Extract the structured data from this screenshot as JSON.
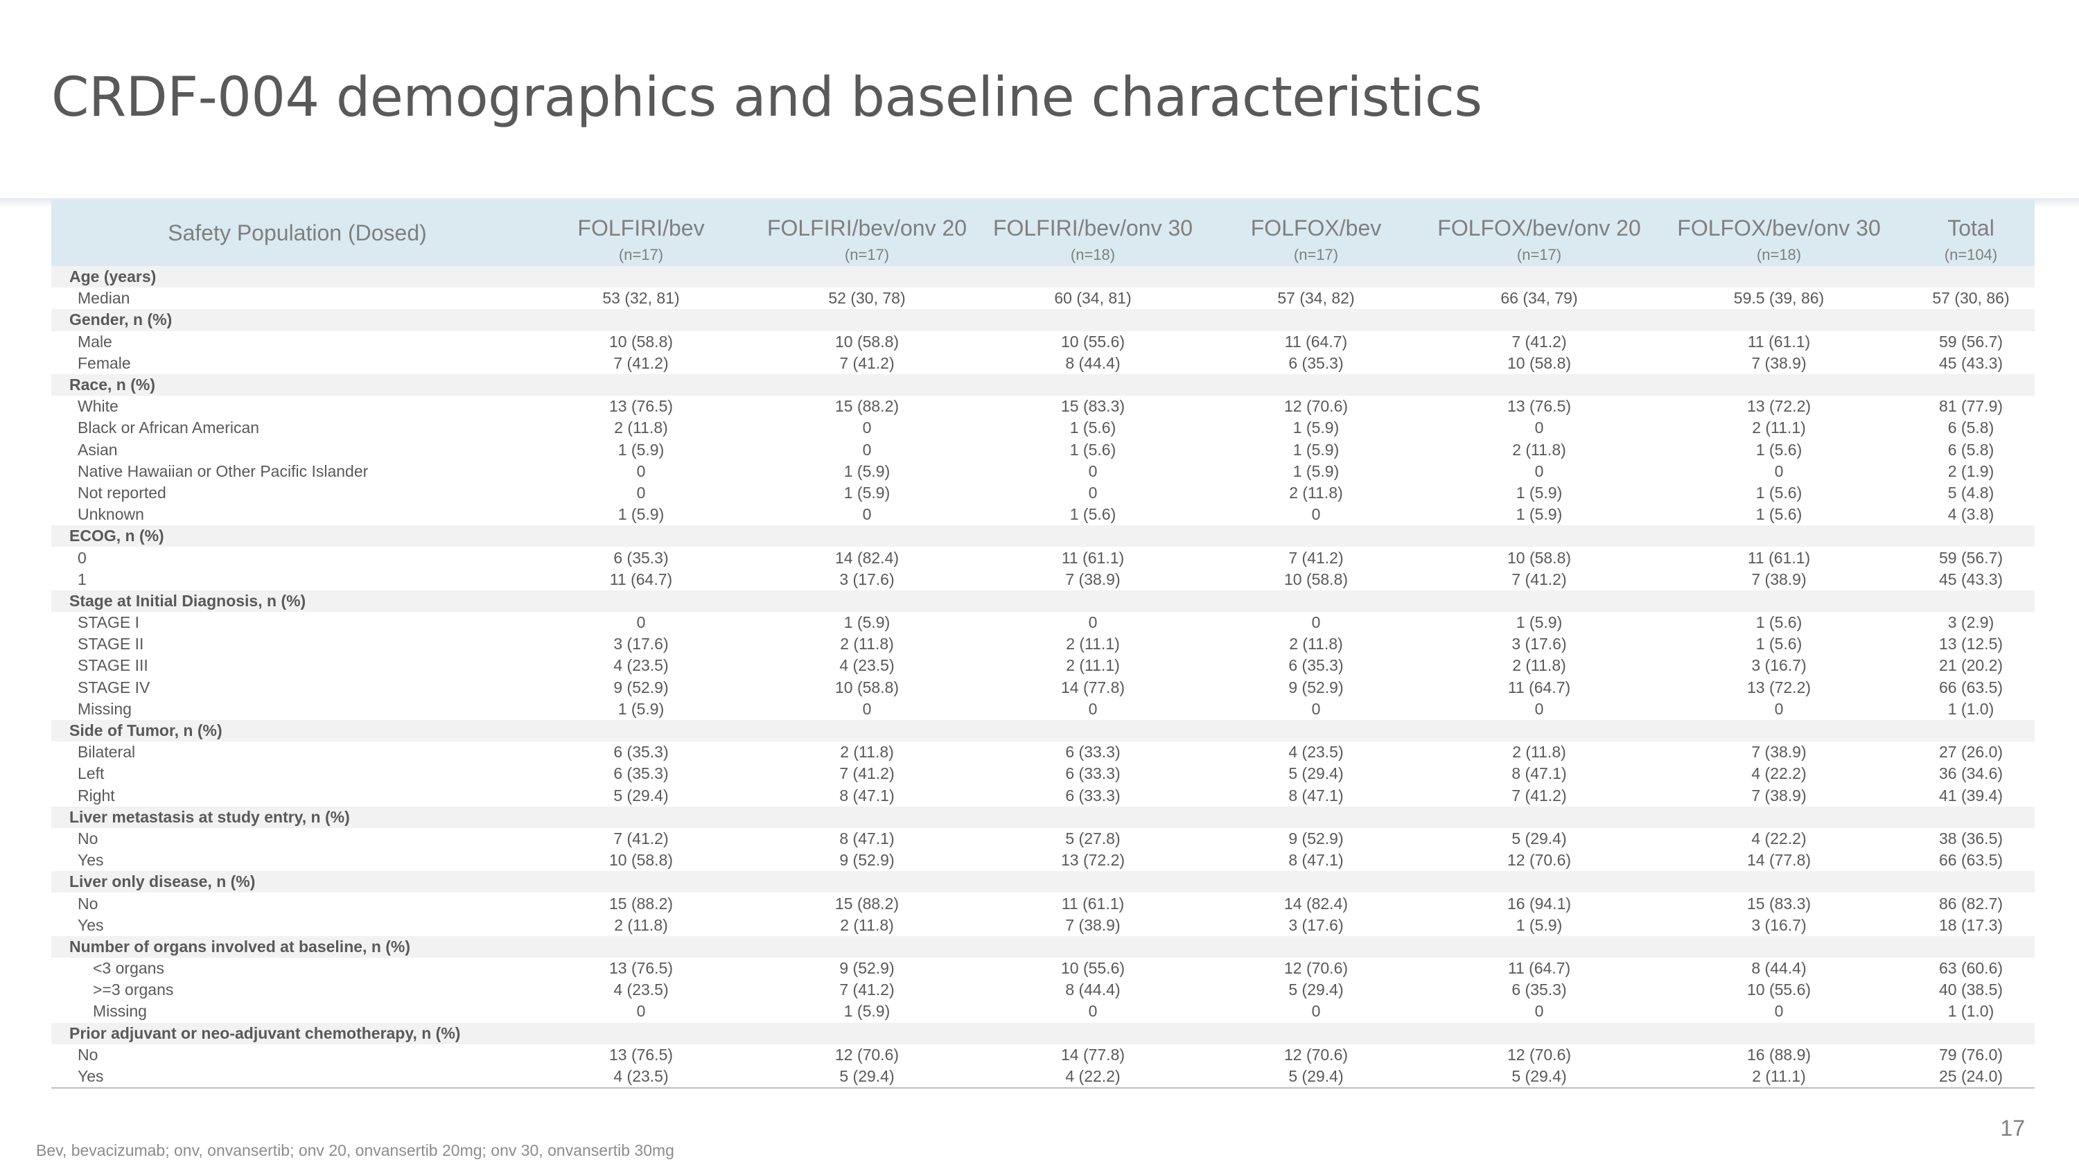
{
  "slide": {
    "title": "CRDF-004 demographics and baseline characteristics",
    "footnote": "Bev, bevacizumab; onv, onvansertib; onv 20, onvansertib 20mg; onv 30, onvansertib 30mg",
    "page_number": "17"
  },
  "table": {
    "group_label": "Safety Population (Dosed)",
    "columns": [
      {
        "name": "FOLFIRI/bev",
        "n": "(n=17)"
      },
      {
        "name": "FOLFIRI/bev/onv 20",
        "n": "(n=17)"
      },
      {
        "name": "FOLFIRI/bev/onv 30",
        "n": "(n=18)"
      },
      {
        "name": "FOLFOX/bev",
        "n": "(n=17)"
      },
      {
        "name": "FOLFOX/bev/onv 20",
        "n": "(n=17)"
      },
      {
        "name": "FOLFOX/bev/onv 30",
        "n": "(n=18)"
      },
      {
        "name": "Total",
        "n": "(n=104)"
      }
    ],
    "sections": [
      {
        "label": "Age (years)",
        "rows": [
          {
            "label": "Median",
            "values": [
              "53 (32, 81)",
              "52 (30, 78)",
              "60 (34, 81)",
              "57 (34, 82)",
              "66 (34, 79)",
              "59.5 (39, 86)",
              "57 (30, 86)"
            ]
          }
        ]
      },
      {
        "label": "Gender, n (%)",
        "rows": [
          {
            "label": "Male",
            "values": [
              "10 (58.8)",
              "10 (58.8)",
              "10 (55.6)",
              "11 (64.7)",
              "7 (41.2)",
              "11 (61.1)",
              "59 (56.7)"
            ]
          },
          {
            "label": "Female",
            "values": [
              "7 (41.2)",
              "7 (41.2)",
              "8 (44.4)",
              "6 (35.3)",
              "10 (58.8)",
              "7 (38.9)",
              "45 (43.3)"
            ]
          }
        ]
      },
      {
        "label": "Race, n (%)",
        "rows": [
          {
            "label": "White",
            "values": [
              "13 (76.5)",
              "15 (88.2)",
              "15 (83.3)",
              "12 (70.6)",
              "13 (76.5)",
              "13 (72.2)",
              "81 (77.9)"
            ]
          },
          {
            "label": "Black or African American",
            "values": [
              "2 (11.8)",
              "0",
              "1 (5.6)",
              "1 (5.9)",
              "0",
              "2 (11.1)",
              "6 (5.8)"
            ]
          },
          {
            "label": "Asian",
            "values": [
              "1 (5.9)",
              "0",
              "1 (5.6)",
              "1 (5.9)",
              "2 (11.8)",
              "1 (5.6)",
              "6 (5.8)"
            ]
          },
          {
            "label": "Native Hawaiian or Other Pacific Islander",
            "values": [
              "0",
              "1 (5.9)",
              "0",
              "1 (5.9)",
              "0",
              "0",
              "2 (1.9)"
            ]
          },
          {
            "label": "Not reported",
            "values": [
              "0",
              "1 (5.9)",
              "0",
              "2 (11.8)",
              "1 (5.9)",
              "1 (5.6)",
              "5 (4.8)"
            ]
          },
          {
            "label": "Unknown",
            "values": [
              "1 (5.9)",
              "0",
              "1 (5.6)",
              "0",
              "1 (5.9)",
              "1 (5.6)",
              "4 (3.8)"
            ]
          }
        ]
      },
      {
        "label": "ECOG, n (%)",
        "rows": [
          {
            "label": "0",
            "values": [
              "6 (35.3)",
              "14 (82.4)",
              "11 (61.1)",
              "7 (41.2)",
              "10 (58.8)",
              "11 (61.1)",
              "59 (56.7)"
            ]
          },
          {
            "label": "1",
            "values": [
              "11 (64.7)",
              "3 (17.6)",
              "7 (38.9)",
              "10 (58.8)",
              "7 (41.2)",
              "7 (38.9)",
              "45 (43.3)"
            ]
          }
        ]
      },
      {
        "label": "Stage at Initial Diagnosis, n (%)",
        "rows": [
          {
            "label": "STAGE I",
            "values": [
              "0",
              "1 (5.9)",
              "0",
              "0",
              "1 (5.9)",
              "1 (5.6)",
              "3 (2.9)"
            ]
          },
          {
            "label": "STAGE II",
            "values": [
              "3 (17.6)",
              "2 (11.8)",
              "2 (11.1)",
              "2 (11.8)",
              "3 (17.6)",
              "1 (5.6)",
              "13 (12.5)"
            ]
          },
          {
            "label": "STAGE III",
            "values": [
              "4 (23.5)",
              "4 (23.5)",
              "2 (11.1)",
              "6 (35.3)",
              "2 (11.8)",
              "3 (16.7)",
              "21 (20.2)"
            ]
          },
          {
            "label": "STAGE IV",
            "values": [
              "9 (52.9)",
              "10 (58.8)",
              "14 (77.8)",
              "9 (52.9)",
              "11 (64.7)",
              "13 (72.2)",
              "66 (63.5)"
            ]
          },
          {
            "label": "Missing",
            "values": [
              "1 (5.9)",
              "0",
              "0",
              "0",
              "0",
              "0",
              "1 (1.0)"
            ]
          }
        ]
      },
      {
        "label": "Side of Tumor, n (%)",
        "rows": [
          {
            "label": "Bilateral",
            "values": [
              "6 (35.3)",
              "2 (11.8)",
              "6 (33.3)",
              "4 (23.5)",
              "2 (11.8)",
              "7 (38.9)",
              "27 (26.0)"
            ]
          },
          {
            "label": "Left",
            "values": [
              "6 (35.3)",
              "7 (41.2)",
              "6 (33.3)",
              "5 (29.4)",
              "8 (47.1)",
              "4 (22.2)",
              "36 (34.6)"
            ]
          },
          {
            "label": "Right",
            "values": [
              "5 (29.4)",
              "8 (47.1)",
              "6 (33.3)",
              "8 (47.1)",
              "7 (41.2)",
              "7 (38.9)",
              "41 (39.4)"
            ]
          }
        ]
      },
      {
        "label": "Liver metastasis at study entry, n (%)",
        "rows": [
          {
            "label": "No",
            "values": [
              "7 (41.2)",
              "8 (47.1)",
              "5 (27.8)",
              "9 (52.9)",
              "5 (29.4)",
              "4 (22.2)",
              "38 (36.5)"
            ]
          },
          {
            "label": "Yes",
            "values": [
              "10 (58.8)",
              "9 (52.9)",
              "13 (72.2)",
              "8 (47.1)",
              "12 (70.6)",
              "14 (77.8)",
              "66 (63.5)"
            ]
          }
        ]
      },
      {
        "label": "Liver only disease, n (%)",
        "rows": [
          {
            "label": "No",
            "values": [
              "15 (88.2)",
              "15 (88.2)",
              "11 (61.1)",
              "14 (82.4)",
              "16 (94.1)",
              "15 (83.3)",
              "86 (82.7)"
            ]
          },
          {
            "label": "Yes",
            "values": [
              "2 (11.8)",
              "2 (11.8)",
              "7 (38.9)",
              "3 (17.6)",
              "1 (5.9)",
              "3 (16.7)",
              "18 (17.3)"
            ]
          }
        ]
      },
      {
        "label": "Number of organs involved at baseline, n (%)",
        "indent": true,
        "rows": [
          {
            "label": "<3 organs",
            "values": [
              "13 (76.5)",
              "9 (52.9)",
              "10 (55.6)",
              "12 (70.6)",
              "11 (64.7)",
              "8 (44.4)",
              "63 (60.6)"
            ]
          },
          {
            "label": ">=3 organs",
            "values": [
              "4 (23.5)",
              "7 (41.2)",
              "8 (44.4)",
              "5 (29.4)",
              "6 (35.3)",
              "10 (55.6)",
              "40 (38.5)"
            ]
          },
          {
            "label": "Missing",
            "values": [
              "0",
              "1 (5.9)",
              "0",
              "0",
              "0",
              "0",
              "1 (1.0)"
            ]
          }
        ]
      },
      {
        "label": "Prior adjuvant or neo-adjuvant chemotherapy, n (%)",
        "rows": [
          {
            "label": "No",
            "values": [
              "13 (76.5)",
              "12 (70.6)",
              "14 (77.8)",
              "12 (70.6)",
              "12 (70.6)",
              "16 (88.9)",
              "79 (76.0)"
            ]
          },
          {
            "label": "Yes",
            "values": [
              "4 (23.5)",
              "5 (29.4)",
              "4 (22.2)",
              "5 (29.4)",
              "5 (29.4)",
              "2 (11.1)",
              "25 (24.0)"
            ]
          }
        ]
      }
    ]
  }
}
